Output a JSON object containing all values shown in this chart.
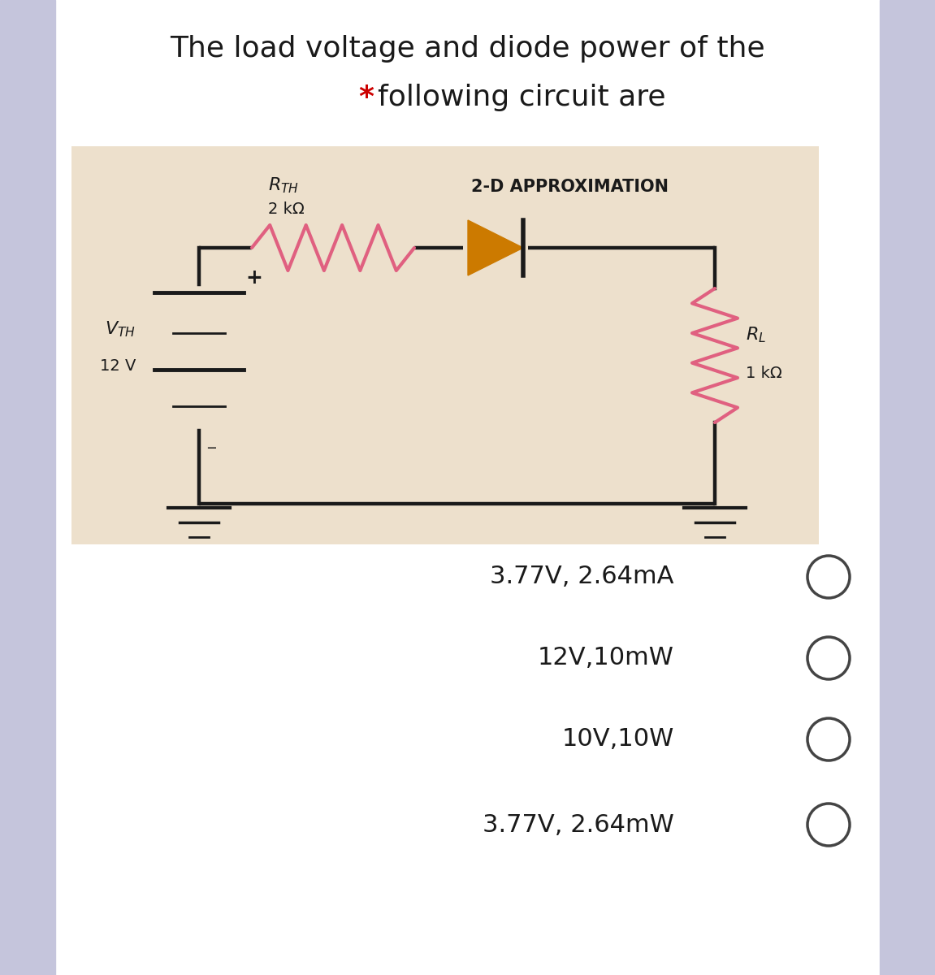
{
  "title_line1": "The load voltage and diode power of the",
  "title_line2_rest": "following circuit are",
  "bg_color": "#ffffff",
  "circuit_bg": "#ede0cc",
  "wire_color": "#1a1a1a",
  "resistor_color": "#e06080",
  "diode_color": "#cc7a00",
  "rl_color": "#e06080",
  "label_rth_val": "2 kΩ",
  "label_approx": "2-D APPROXIMATION",
  "label_vth_val": "12 V",
  "label_rl_val": "1 kΩ",
  "choices": [
    "3.77V, 2.64mA",
    "12V,10mW",
    "10V,10W",
    "3.77V, 2.64mW"
  ],
  "title_fontsize": 26,
  "choice_fontsize": 22,
  "star_color": "#cc0000",
  "border_color": "#c5c5dc"
}
